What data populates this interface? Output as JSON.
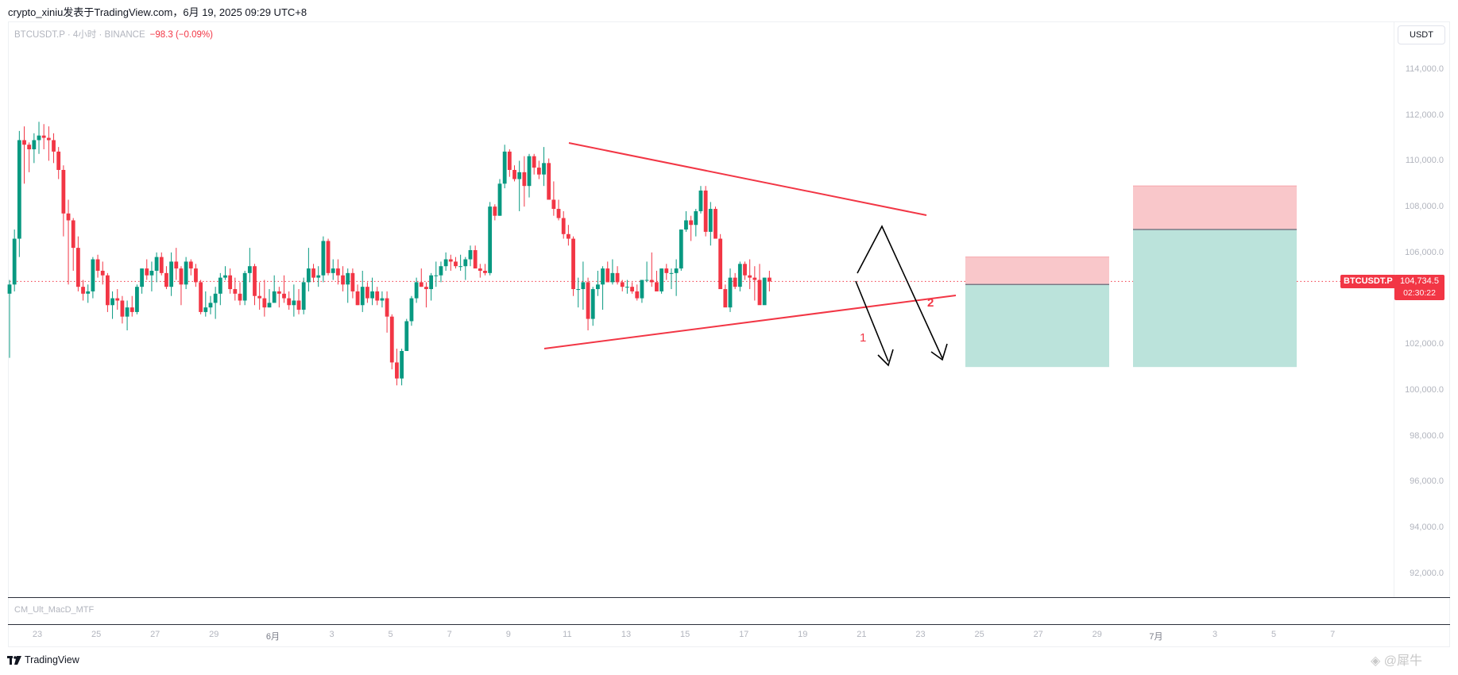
{
  "header": {
    "text": "crypto_xiniu发表于TradingView.com，6月 19, 2025 09:29 UTC+8"
  },
  "legend": {
    "symbol_line": "BTCUSDT.P · 4小时 · BINANCE",
    "change": "−98.3 (−0.09%)"
  },
  "currency_button": "USDT",
  "price_tag": {
    "symbol": "BTCUSDT.P",
    "price": "104,734.5",
    "countdown": "02:30:22"
  },
  "indicator_pane": {
    "label": "CM_Ult_MacD_MTF"
  },
  "footer": {
    "logo_text": "TradingView",
    "watermark": "@犀牛"
  },
  "colors": {
    "up": "#089981",
    "down": "#f23645",
    "trendline": "#f23645",
    "arrow": "#000000",
    "stop_zone": "#f9c7ca",
    "target_zone": "#bbe3db"
  },
  "chart_data": {
    "type": "candlestick",
    "title": "BTCUSDT.P · 4小时 · BINANCE",
    "xlabel": "",
    "ylabel": "USDT",
    "ylim": [
      91000,
      115200
    ],
    "y_ticks": [
      "114,000.0",
      "112,000.0",
      "110,000.0",
      "108,000.0",
      "106,000.0",
      "104,000.0",
      "102,000.0",
      "100,000.0",
      "98,000.0",
      "96,000.0",
      "94,000.0",
      "92,000.0"
    ],
    "x_ticks": [
      "23",
      "25",
      "27",
      "29",
      "6月",
      "3",
      "5",
      "7",
      "9",
      "11",
      "13",
      "15",
      "17",
      "19",
      "21",
      "23",
      "25",
      "27",
      "29",
      "7月",
      "3",
      "5",
      "7"
    ],
    "last_price": 104734.5,
    "grid": false,
    "candles": [
      [
        104200,
        104800,
        101400,
        104600
      ],
      [
        104600,
        107000,
        104300,
        106600
      ],
      [
        106600,
        111300,
        105800,
        110900
      ],
      [
        110900,
        111500,
        109000,
        110700
      ],
      [
        110700,
        110800,
        109500,
        110500
      ],
      [
        110500,
        111200,
        109900,
        110900
      ],
      [
        110900,
        111700,
        110300,
        111100
      ],
      [
        111100,
        111600,
        110500,
        111000
      ],
      [
        111000,
        111500,
        110000,
        110900
      ],
      [
        110900,
        111200,
        109900,
        110400
      ],
      [
        110400,
        110600,
        109200,
        109600
      ],
      [
        109600,
        109800,
        106700,
        107700
      ],
      [
        107700,
        108300,
        104600,
        107400
      ],
      [
        107400,
        107500,
        105200,
        106200
      ],
      [
        106200,
        106700,
        104300,
        104500
      ],
      [
        104500,
        104800,
        103900,
        104200
      ],
      [
        104200,
        104600,
        103800,
        104300
      ],
      [
        104300,
        105800,
        104000,
        105700
      ],
      [
        105700,
        105900,
        104900,
        105200
      ],
      [
        105200,
        105600,
        104600,
        105000
      ],
      [
        105000,
        105100,
        103400,
        103700
      ],
      [
        103700,
        104300,
        103100,
        104000
      ],
      [
        104000,
        104400,
        103500,
        103900
      ],
      [
        103900,
        104100,
        102900,
        103200
      ],
      [
        103200,
        103900,
        102600,
        103600
      ],
      [
        103600,
        104100,
        103200,
        103400
      ],
      [
        103400,
        104600,
        103300,
        104500
      ],
      [
        104500,
        105300,
        104200,
        105300
      ],
      [
        105300,
        105700,
        104800,
        105000
      ],
      [
        105000,
        105600,
        104300,
        105200
      ],
      [
        105200,
        106000,
        104700,
        105800
      ],
      [
        105800,
        106000,
        105000,
        105100
      ],
      [
        105100,
        105400,
        104400,
        104500
      ],
      [
        104500,
        106000,
        104100,
        105600
      ],
      [
        105600,
        106200,
        104800,
        105300
      ],
      [
        105300,
        105400,
        103700,
        104600
      ],
      [
        104600,
        105800,
        104400,
        105600
      ],
      [
        105600,
        105700,
        105000,
        105300
      ],
      [
        105300,
        105500,
        104500,
        104700
      ],
      [
        104700,
        104800,
        103300,
        103400
      ],
      [
        103400,
        104300,
        103200,
        103600
      ],
      [
        103600,
        104100,
        103300,
        103800
      ],
      [
        103800,
        104500,
        103100,
        104200
      ],
      [
        104200,
        105100,
        103700,
        104900
      ],
      [
        104900,
        105400,
        104800,
        105000
      ],
      [
        105000,
        105300,
        104200,
        104400
      ],
      [
        104400,
        104900,
        103900,
        104200
      ],
      [
        104200,
        104700,
        103700,
        103900
      ],
      [
        103900,
        105200,
        103700,
        105100
      ],
      [
        105100,
        106200,
        104700,
        105400
      ],
      [
        105400,
        105500,
        103700,
        104100
      ],
      [
        104100,
        104700,
        103500,
        104000
      ],
      [
        104000,
        104800,
        103200,
        103600
      ],
      [
        103600,
        104400,
        103600,
        103800
      ],
      [
        103800,
        105000,
        103900,
        104300
      ],
      [
        104300,
        104500,
        103600,
        104200
      ],
      [
        104200,
        105000,
        103800,
        104000
      ],
      [
        104000,
        104300,
        103500,
        103700
      ],
      [
        103700,
        104600,
        103200,
        103900
      ],
      [
        103900,
        104400,
        103300,
        103500
      ],
      [
        103500,
        104900,
        103300,
        104700
      ],
      [
        104700,
        106200,
        104300,
        105300
      ],
      [
        105300,
        105500,
        104700,
        104900
      ],
      [
        104900,
        105400,
        104500,
        105000
      ],
      [
        105000,
        106700,
        104700,
        106500
      ],
      [
        106500,
        106600,
        105000,
        105100
      ],
      [
        105100,
        105700,
        104800,
        105300
      ],
      [
        105300,
        105700,
        104600,
        105000
      ],
      [
        105000,
        105400,
        104300,
        104600
      ],
      [
        104600,
        105300,
        103800,
        105100
      ],
      [
        105100,
        105300,
        104000,
        104300
      ],
      [
        104300,
        104600,
        103700,
        103700
      ],
      [
        103700,
        105200,
        103400,
        104500
      ],
      [
        104500,
        104700,
        103800,
        104000
      ],
      [
        104000,
        104900,
        103700,
        104300
      ],
      [
        104300,
        104500,
        103700,
        103900
      ],
      [
        103900,
        104300,
        103600,
        104000
      ],
      [
        104000,
        104300,
        102500,
        103200
      ],
      [
        103200,
        103300,
        100900,
        101200
      ],
      [
        101200,
        101800,
        100200,
        100500
      ],
      [
        100500,
        101800,
        100200,
        101700
      ],
      [
        101700,
        103100,
        101800,
        103000
      ],
      [
        103000,
        104100,
        102800,
        104000
      ],
      [
        104000,
        104900,
        103800,
        104700
      ],
      [
        104700,
        105300,
        104500,
        104500
      ],
      [
        104500,
        104700,
        103600,
        104400
      ],
      [
        104400,
        105100,
        103900,
        105000
      ],
      [
        105000,
        105600,
        104500,
        105000
      ],
      [
        105000,
        105600,
        104700,
        105400
      ],
      [
        105400,
        106000,
        105200,
        105700
      ],
      [
        105700,
        105900,
        105200,
        105600
      ],
      [
        105600,
        105800,
        105300,
        105400
      ],
      [
        105400,
        105900,
        105200,
        105400
      ],
      [
        105400,
        105800,
        104800,
        105700
      ],
      [
        105700,
        106300,
        105400,
        106100
      ],
      [
        106100,
        106300,
        105400,
        105300
      ],
      [
        105300,
        105500,
        104900,
        105200
      ],
      [
        105200,
        105500,
        105000,
        105100
      ],
      [
        105100,
        108200,
        105000,
        108000
      ],
      [
        108000,
        108100,
        107400,
        107600
      ],
      [
        107600,
        109200,
        107600,
        109000
      ],
      [
        109000,
        110700,
        108800,
        110400
      ],
      [
        110400,
        110500,
        109300,
        109600
      ],
      [
        109600,
        109800,
        109100,
        109200
      ],
      [
        109200,
        110000,
        107800,
        109500
      ],
      [
        109500,
        110200,
        108000,
        108900
      ],
      [
        108900,
        110300,
        108400,
        110200
      ],
      [
        110200,
        110300,
        109400,
        109700
      ],
      [
        109700,
        110000,
        109200,
        109400
      ],
      [
        109400,
        110600,
        108900,
        109900
      ],
      [
        109900,
        110100,
        108300,
        108300
      ],
      [
        108300,
        109100,
        107600,
        107900
      ],
      [
        107900,
        108300,
        107400,
        107500
      ],
      [
        107500,
        107800,
        106600,
        106800
      ],
      [
        106800,
        107200,
        106300,
        106600
      ],
      [
        106600,
        106700,
        104100,
        104400
      ],
      [
        104400,
        104900,
        103600,
        104400
      ],
      [
        104400,
        105600,
        103500,
        104700
      ],
      [
        104700,
        104900,
        102600,
        103100
      ],
      [
        103100,
        104500,
        102800,
        104400
      ],
      [
        104400,
        105200,
        104100,
        104600
      ],
      [
        104600,
        105400,
        103500,
        105300
      ],
      [
        105300,
        105600,
        104700,
        104700
      ],
      [
        104700,
        105700,
        104600,
        105100
      ],
      [
        105100,
        105400,
        104600,
        104700
      ],
      [
        104700,
        104800,
        104300,
        104500
      ],
      [
        104500,
        104800,
        104200,
        104500
      ],
      [
        104500,
        104700,
        104200,
        104300
      ],
      [
        104300,
        104600,
        103900,
        104000
      ],
      [
        104000,
        104800,
        103800,
        104800
      ],
      [
        104800,
        105600,
        104700,
        104800
      ],
      [
        104800,
        106000,
        104500,
        104700
      ],
      [
        104700,
        105200,
        104300,
        104300
      ],
      [
        104300,
        105300,
        104200,
        105300
      ],
      [
        105300,
        105500,
        104800,
        105100
      ],
      [
        105100,
        105300,
        104400,
        105100
      ],
      [
        105100,
        105700,
        104100,
        105300
      ],
      [
        105300,
        107000,
        105200,
        107000
      ],
      [
        107000,
        107800,
        106900,
        107400
      ],
      [
        107400,
        107600,
        106500,
        107200
      ],
      [
        107200,
        107900,
        106700,
        107800
      ],
      [
        107800,
        108900,
        107700,
        108700
      ],
      [
        108700,
        108900,
        106700,
        106900
      ],
      [
        106900,
        108200,
        106300,
        107900
      ],
      [
        107900,
        108000,
        106700,
        106600
      ],
      [
        106600,
        106800,
        104600,
        104400
      ],
      [
        104400,
        104600,
        103800,
        103600
      ],
      [
        103600,
        105300,
        103400,
        104900
      ],
      [
        104900,
        105100,
        104400,
        104500
      ],
      [
        104500,
        105600,
        104300,
        105500
      ],
      [
        105500,
        105600,
        104800,
        105000
      ],
      [
        105000,
        105700,
        104400,
        104900
      ],
      [
        104900,
        105400,
        103900,
        104800
      ],
      [
        104800,
        105500,
        103900,
        103700
      ],
      [
        103700,
        104900,
        103800,
        104900
      ],
      [
        104900,
        105200,
        104300,
        104735
      ]
    ]
  },
  "drawings": {
    "upper_trendline": {
      "from": [
        "Jun 10",
        110700
      ],
      "to": [
        "Jun 22",
        107600
      ]
    },
    "lower_trendline": {
      "from": [
        "Jun 10",
        101900
      ],
      "to": [
        "Jun 23",
        104000
      ]
    },
    "scenario_labels": [
      "1",
      "2"
    ],
    "scenario_1_arrow": {
      "from": 104700,
      "to": 101000
    },
    "scenario_2_path": [
      104700,
      107200,
      101200
    ],
    "position_1": {
      "stop_top": 105800,
      "entry": 104600,
      "target": 101000
    },
    "position_2": {
      "stop_top": 108900,
      "entry": 107000,
      "target": 101000
    }
  }
}
